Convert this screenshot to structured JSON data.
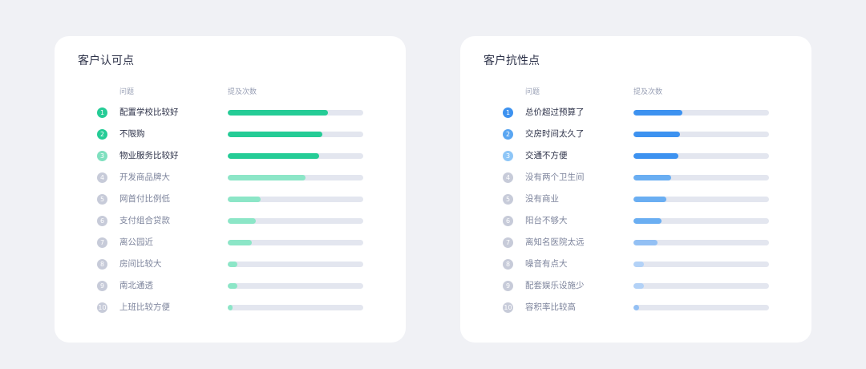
{
  "colors": {
    "page_bg": "#f0f1f5",
    "card_bg": "#ffffff",
    "track": "#e3e6ef",
    "badge_gray": "#c7cbd9",
    "green_strong": "#25cc96",
    "green_light": "#8ce6c7",
    "green_badge_light": "#7fe0bf",
    "blue_strong": "#3d92f0",
    "blue_mid": "#6aaef2",
    "blue_light": "#93c0f4",
    "blue_faint": "#b3d2f7",
    "blue_badge_mid": "#5aa6f2",
    "blue_badge_light": "#8ec6f7"
  },
  "panels": [
    {
      "id": "left",
      "title": "客户认可点",
      "col_question": "问题",
      "col_count": "提及次数",
      "items": [
        {
          "rank": "1",
          "label": "配置学校比较好",
          "value": 0.74,
          "bar": "#25cc96",
          "badge": "#25cc96",
          "top": true
        },
        {
          "rank": "2",
          "label": "不限购",
          "value": 0.7,
          "bar": "#25cc96",
          "badge": "#25cc96",
          "top": true
        },
        {
          "rank": "3",
          "label": "物业服务比较好",
          "value": 0.675,
          "bar": "#25cc96",
          "badge": "#7fe0bf",
          "top": true
        },
        {
          "rank": "4",
          "label": "开发商品牌大",
          "value": 0.575,
          "bar": "#8ce6c7",
          "badge": "#c7cbd9",
          "top": false
        },
        {
          "rank": "5",
          "label": "网首付比例低",
          "value": 0.24,
          "bar": "#8ce6c7",
          "badge": "#c7cbd9",
          "top": false
        },
        {
          "rank": "6",
          "label": "支付组合贷款",
          "value": 0.21,
          "bar": "#8ce6c7",
          "badge": "#c7cbd9",
          "top": false
        },
        {
          "rank": "7",
          "label": "离公园近",
          "value": 0.18,
          "bar": "#8ce6c7",
          "badge": "#c7cbd9",
          "top": false
        },
        {
          "rank": "8",
          "label": "房间比较大",
          "value": 0.07,
          "bar": "#8ce6c7",
          "badge": "#c7cbd9",
          "top": false
        },
        {
          "rank": "9",
          "label": "南北通透",
          "value": 0.07,
          "bar": "#8ce6c7",
          "badge": "#c7cbd9",
          "top": false
        },
        {
          "rank": "10",
          "label": "上班比较方便",
          "value": 0.035,
          "bar": "#8ce6c7",
          "badge": "#c7cbd9",
          "top": false
        }
      ]
    },
    {
      "id": "right",
      "title": "客户抗性点",
      "col_question": "问题",
      "col_count": "提及次数",
      "items": [
        {
          "rank": "1",
          "label": "总价超过预算了",
          "value": 0.36,
          "bar": "#3d92f0",
          "badge": "#3d92f0",
          "top": true
        },
        {
          "rank": "2",
          "label": "交房时间太久了",
          "value": 0.345,
          "bar": "#3d92f0",
          "badge": "#5aa6f2",
          "top": true
        },
        {
          "rank": "3",
          "label": "交通不方便",
          "value": 0.33,
          "bar": "#3d92f0",
          "badge": "#8ec6f7",
          "top": true
        },
        {
          "rank": "4",
          "label": "没有两个卫生间",
          "value": 0.28,
          "bar": "#6aaef2",
          "badge": "#c7cbd9",
          "top": false
        },
        {
          "rank": "5",
          "label": "没有商业",
          "value": 0.24,
          "bar": "#6aaef2",
          "badge": "#c7cbd9",
          "top": false
        },
        {
          "rank": "6",
          "label": "阳台不够大",
          "value": 0.21,
          "bar": "#6aaef2",
          "badge": "#c7cbd9",
          "top": false
        },
        {
          "rank": "7",
          "label": "离知名医院太远",
          "value": 0.18,
          "bar": "#93c0f4",
          "badge": "#c7cbd9",
          "top": false
        },
        {
          "rank": "8",
          "label": "噪音有点大",
          "value": 0.075,
          "bar": "#b3d2f7",
          "badge": "#c7cbd9",
          "top": false
        },
        {
          "rank": "9",
          "label": "配套娱乐设施少",
          "value": 0.075,
          "bar": "#b3d2f7",
          "badge": "#c7cbd9",
          "top": false
        },
        {
          "rank": "10",
          "label": "容积率比较高",
          "value": 0.04,
          "bar": "#93c0f4",
          "badge": "#c7cbd9",
          "top": false
        }
      ]
    }
  ]
}
